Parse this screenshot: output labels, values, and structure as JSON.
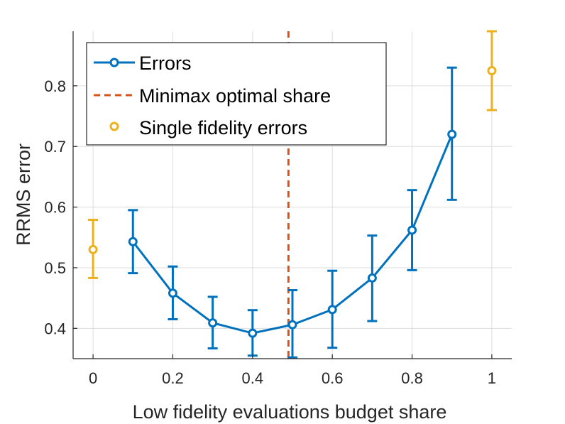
{
  "chart_data": {
    "type": "line",
    "xlabel": "Low fidelity evaluations budget share",
    "ylabel": "RRMS error",
    "xlim": [
      -0.05,
      1.05
    ],
    "ylim": [
      0.35,
      0.89
    ],
    "grid": true,
    "legend_position": "top-left",
    "x_ticks": [
      0,
      0.2,
      0.4,
      0.6,
      0.8,
      1
    ],
    "x_tick_labels": [
      "0",
      "0.2",
      "0.4",
      "0.6",
      "0.8",
      "1"
    ],
    "y_ticks": [
      0.4,
      0.5,
      0.6,
      0.7,
      0.8
    ],
    "y_tick_labels": [
      "0.4",
      "0.5",
      "0.6",
      "0.7",
      "0.8"
    ],
    "series": [
      {
        "name": "Errors",
        "color": "#0072BD",
        "x": [
          0.1,
          0.2,
          0.3,
          0.4,
          0.5,
          0.6,
          0.7,
          0.8,
          0.9
        ],
        "y": [
          0.543,
          0.458,
          0.409,
          0.392,
          0.406,
          0.431,
          0.483,
          0.562,
          0.72
        ],
        "lower": [
          0.491,
          0.415,
          0.367,
          0.355,
          0.352,
          0.368,
          0.412,
          0.496,
          0.612
        ],
        "upper": [
          0.595,
          0.502,
          0.452,
          0.43,
          0.463,
          0.495,
          0.553,
          0.628,
          0.83
        ]
      },
      {
        "name": "Single fidelity errors",
        "color": "#EDB120",
        "x": [
          0,
          1
        ],
        "y": [
          0.53,
          0.825
        ],
        "lower": [
          0.483,
          0.76
        ],
        "upper": [
          0.579,
          0.89
        ]
      }
    ],
    "reference_line": {
      "name": "Minimax optimal share",
      "color": "#D95319",
      "x": 0.49
    },
    "legend": [
      "Errors",
      "Minimax optimal share",
      "Single fidelity errors"
    ]
  }
}
